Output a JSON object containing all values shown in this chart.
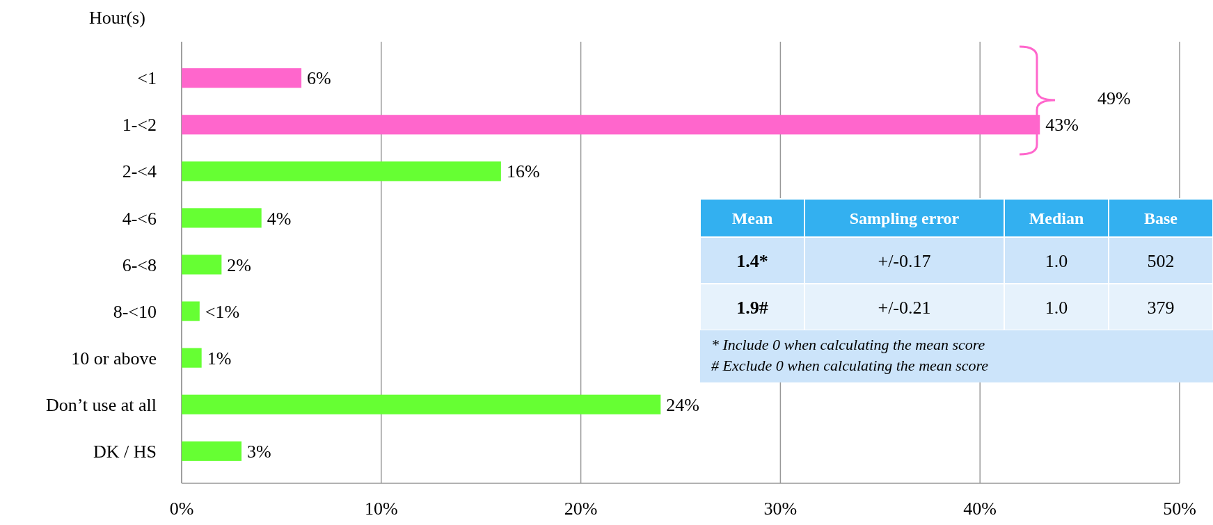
{
  "chart_data": {
    "type": "bar",
    "orientation": "horizontal",
    "ylabel": "Hour(s)",
    "categories": [
      "<1",
      "1-<2",
      "2-<4",
      "4-<6",
      "6-<8",
      "8-<10",
      "10 or above",
      "Don’t use at all",
      "DK / HS"
    ],
    "values": [
      6,
      43,
      16,
      4,
      2,
      0.9,
      1,
      24,
      3
    ],
    "colors": [
      "#ff66cc",
      "#ff66cc",
      "#66ff33",
      "#66ff33",
      "#66ff33",
      "#66ff33",
      "#66ff33",
      "#66ff33",
      "#66ff33"
    ],
    "value_labels": [
      "6%",
      "43%",
      "16%",
      "4%",
      "2%",
      "<1%",
      "1%",
      "24%",
      "3%"
    ],
    "xlim": [
      0,
      50
    ],
    "xticks": [
      {
        "value": 0,
        "label": "0%"
      },
      {
        "value": 10,
        "label": "10%"
      },
      {
        "value": 20,
        "label": "20%"
      },
      {
        "value": 30,
        "label": "30%"
      },
      {
        "value": 40,
        "label": "40%"
      },
      {
        "value": 50,
        "label": "50%"
      }
    ],
    "grid": "x",
    "annotations": [
      "49%",
      "Mean",
      "Sampling error",
      "Median",
      "Base",
      "1.4*",
      "+/-0.17",
      "1.0",
      "502",
      "1.9#",
      "+/-0.21",
      "1.0",
      "379",
      "* Include 0 when calculating the mean score",
      "# Exclude 0 when calculating the mean score"
    ]
  }
}
